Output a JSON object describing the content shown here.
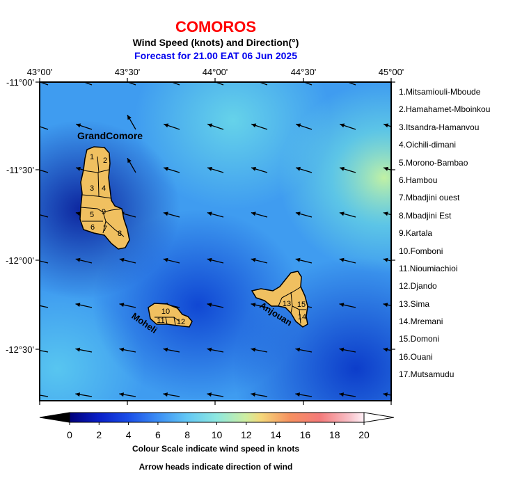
{
  "header": {
    "title": "COMOROS",
    "subtitle": "Wind Speed (knots) and Direction(°)",
    "forecast": "Forecast for  21.00 EAT 06 Jun 2025"
  },
  "axes": {
    "lon_labels": [
      "43°00'",
      "43°30'",
      "44°00'",
      "44°30'",
      "45°00'"
    ],
    "lat_labels": [
      "-11°00'",
      "-11°30'",
      "-12°00'",
      "-12°30'"
    ]
  },
  "islands": {
    "grand_comore": "GrandComore",
    "moheli": "Moheli",
    "anjouan": "Anjouan"
  },
  "region_numbers": [
    "1",
    "2",
    "3",
    "4",
    "5",
    "6",
    "7",
    "8",
    "9",
    "10",
    "11",
    "12",
    "13",
    "14",
    "15"
  ],
  "regions": [
    "1.Mitsamiouli-Mboude",
    "2.Hamahamet-Mboinkou",
    "3.Itsandra-Hamanvou",
    "4.Oichili-dimani",
    "5.Morono-Bambao",
    "6.Hambou",
    "7.Mbadjini ouest",
    "8.Mbadjini Est",
    "9.Kartala",
    "10.Fomboni",
    "11.Nioumiachioi",
    "12.Djando",
    "13.Sima",
    "14.Mremani",
    "15.Domoni",
    "16.Ouani",
    "17.Mutsamudu"
  ],
  "colorbar": {
    "ticks": [
      "0",
      "2",
      "4",
      "6",
      "8",
      "10",
      "12",
      "14",
      "16",
      "18",
      "20"
    ],
    "note1": "Colour Scale indicate wind speed in knots",
    "note2": "Arrow heads indicate direction of wind",
    "colors": [
      "#000080",
      "#0a2ad6",
      "#1e6cf0",
      "#3fa6f5",
      "#6fd8f0",
      "#a8f0c0",
      "#f5d87a",
      "#f6a060",
      "#f46a6a",
      "#f8a8a8",
      "#ffe6f0"
    ]
  },
  "map_data": {
    "lon_range": [
      "43°00'",
      "45°00'"
    ],
    "lat_range": [
      "-11°00'",
      "-12°45'"
    ],
    "wind_direction": "mostly from the east-southeast (arrows pointing west-northwest)"
  }
}
